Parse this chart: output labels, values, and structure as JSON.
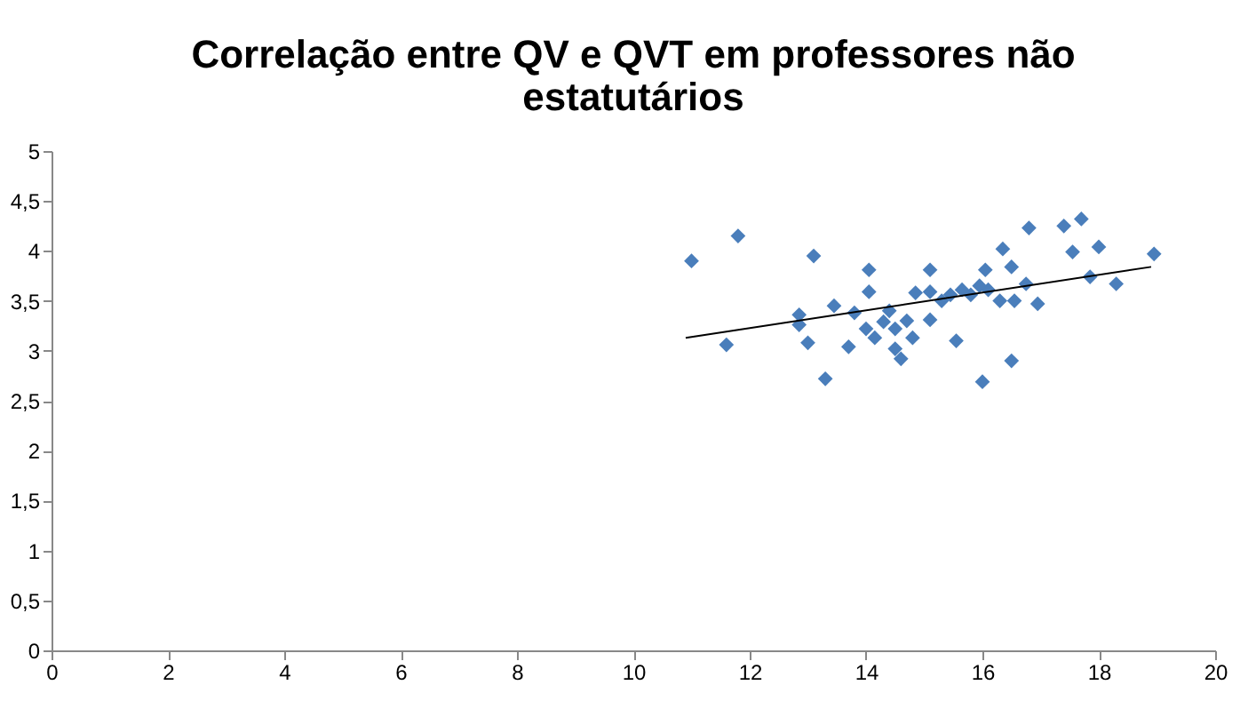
{
  "chart_data": {
    "type": "scatter",
    "title": "Correlação entre QV e QVT em professores não estatutários",
    "marker": "diamond",
    "grid": false,
    "xlim": [
      0,
      20
    ],
    "xticks": [
      0,
      2,
      4,
      6,
      8,
      10,
      12,
      14,
      16,
      18,
      20
    ],
    "ylim": [
      0,
      5
    ],
    "yticks": [
      0,
      {
        "value": 0.5,
        "label": "0,5"
      },
      1,
      {
        "value": 1.5,
        "label": "1,5"
      },
      2,
      {
        "value": 2.5,
        "label": "2,5"
      },
      3,
      {
        "value": 3.5,
        "label": "3,5"
      },
      4,
      {
        "value": 4.5,
        "label": "4,5"
      },
      5
    ],
    "series": [
      {
        "color": "#4a7ebb",
        "x": [
          11.0,
          11.8,
          11.6,
          13.1,
          12.85,
          12.85,
          13.0,
          13.3,
          13.45,
          13.7,
          13.8,
          14.05,
          14.05,
          14.0,
          14.15,
          14.3,
          14.4,
          14.5,
          14.6,
          14.5,
          14.8,
          14.85,
          15.1,
          15.1,
          15.45,
          15.65,
          15.55,
          15.1,
          15.8,
          16.05,
          16.1,
          16.0,
          16.35,
          16.5,
          16.3,
          16.55,
          16.5,
          16.75,
          16.8,
          16.95,
          17.4,
          17.7,
          17.55,
          18.0,
          17.85,
          18.3,
          18.95,
          15.3,
          14.7,
          15.95
        ],
        "values": [
          3.9,
          4.15,
          3.06,
          3.95,
          3.36,
          3.26,
          3.08,
          2.72,
          3.45,
          3.04,
          3.38,
          3.81,
          3.59,
          3.22,
          3.13,
          3.29,
          3.4,
          3.02,
          2.92,
          3.22,
          3.13,
          3.58,
          3.81,
          3.59,
          3.56,
          3.61,
          3.1,
          3.31,
          3.56,
          3.81,
          3.61,
          2.69,
          4.02,
          2.9,
          3.5,
          3.5,
          3.84,
          3.67,
          4.23,
          3.47,
          4.25,
          4.32,
          3.99,
          4.04,
          3.74,
          3.67,
          3.97,
          3.5,
          3.3,
          3.65
        ]
      },
      {
        "type": "line",
        "marker": "none",
        "color": "#000000",
        "x": [
          10.9,
          18.9
        ],
        "values": [
          3.13,
          3.84
        ]
      }
    ]
  }
}
